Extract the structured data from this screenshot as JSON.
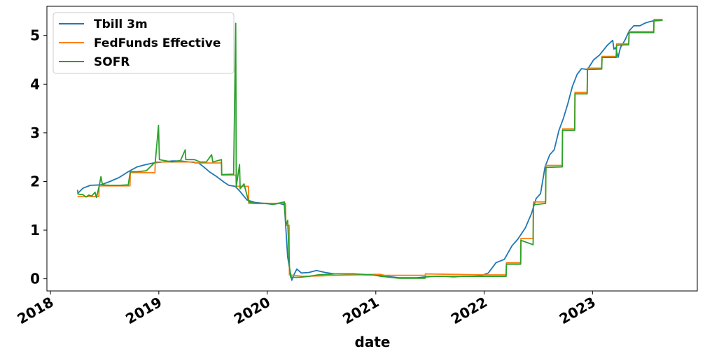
{
  "chart_data": {
    "type": "line",
    "title": "",
    "xlabel": "date",
    "ylabel": "",
    "xlim": [
      "2017-12-20",
      "2023-12-20"
    ],
    "ylim": [
      -0.25,
      5.6
    ],
    "xticks": [
      "2018",
      "2019",
      "2020",
      "2021",
      "2022",
      "2023"
    ],
    "yticks": [
      "0",
      "1",
      "2",
      "3",
      "4",
      "5"
    ],
    "legend_position": "top-left",
    "grid": false,
    "series": [
      {
        "name": "Tbill 3m",
        "color": "#1f77b4",
        "points": [
          [
            "2018-04-02",
            1.75
          ],
          [
            "2018-04-20",
            1.86
          ],
          [
            "2018-05-15",
            1.92
          ],
          [
            "2018-06-20",
            1.93
          ],
          [
            "2018-07-20",
            2.0
          ],
          [
            "2018-08-20",
            2.08
          ],
          [
            "2018-09-20",
            2.2
          ],
          [
            "2018-10-20",
            2.3
          ],
          [
            "2018-11-20",
            2.35
          ],
          [
            "2018-12-15",
            2.38
          ],
          [
            "2019-01-15",
            2.4
          ],
          [
            "2019-02-15",
            2.42
          ],
          [
            "2019-03-15",
            2.42
          ],
          [
            "2019-04-15",
            2.4
          ],
          [
            "2019-05-15",
            2.38
          ],
          [
            "2019-06-01",
            2.3
          ],
          [
            "2019-06-20",
            2.2
          ],
          [
            "2019-07-15",
            2.1
          ],
          [
            "2019-08-10",
            1.98
          ],
          [
            "2019-08-25",
            1.92
          ],
          [
            "2019-09-15",
            1.9
          ],
          [
            "2019-10-01",
            1.8
          ],
          [
            "2019-10-25",
            1.62
          ],
          [
            "2019-11-20",
            1.57
          ],
          [
            "2019-12-20",
            1.55
          ],
          [
            "2020-01-20",
            1.53
          ],
          [
            "2020-02-10",
            1.55
          ],
          [
            "2020-02-28",
            1.52
          ],
          [
            "2020-03-05",
            0.95
          ],
          [
            "2020-03-10",
            0.45
          ],
          [
            "2020-03-17",
            0.2
          ],
          [
            "2020-03-24",
            -0.03
          ],
          [
            "2020-03-31",
            0.08
          ],
          [
            "2020-04-10",
            0.2
          ],
          [
            "2020-04-25",
            0.12
          ],
          [
            "2020-05-20",
            0.13
          ],
          [
            "2020-06-15",
            0.17
          ],
          [
            "2020-07-15",
            0.13
          ],
          [
            "2020-08-15",
            0.1
          ],
          [
            "2020-09-20",
            0.1
          ],
          [
            "2020-10-20",
            0.1
          ],
          [
            "2020-11-20",
            0.08
          ],
          [
            "2020-12-20",
            0.08
          ],
          [
            "2021-01-20",
            0.07
          ],
          [
            "2021-02-20",
            0.04
          ],
          [
            "2021-03-20",
            0.02
          ],
          [
            "2021-04-20",
            0.02
          ],
          [
            "2021-05-20",
            0.02
          ],
          [
            "2021-06-20",
            0.04
          ],
          [
            "2021-07-20",
            0.05
          ],
          [
            "2021-08-20",
            0.05
          ],
          [
            "2021-09-20",
            0.04
          ],
          [
            "2021-10-20",
            0.05
          ],
          [
            "2021-11-20",
            0.05
          ],
          [
            "2021-12-20",
            0.06
          ],
          [
            "2022-01-15",
            0.12
          ],
          [
            "2022-02-10",
            0.33
          ],
          [
            "2022-03-10",
            0.4
          ],
          [
            "2022-04-05",
            0.68
          ],
          [
            "2022-04-25",
            0.82
          ],
          [
            "2022-05-20",
            1.05
          ],
          [
            "2022-06-10",
            1.35
          ],
          [
            "2022-06-25",
            1.65
          ],
          [
            "2022-07-10",
            1.75
          ],
          [
            "2022-07-25",
            2.3
          ],
          [
            "2022-08-10",
            2.55
          ],
          [
            "2022-08-25",
            2.65
          ],
          [
            "2022-09-10",
            3.05
          ],
          [
            "2022-09-25",
            3.3
          ],
          [
            "2022-10-10",
            3.6
          ],
          [
            "2022-10-25",
            3.95
          ],
          [
            "2022-11-10",
            4.2
          ],
          [
            "2022-11-25",
            4.32
          ],
          [
            "2022-12-15",
            4.3
          ],
          [
            "2023-01-05",
            4.5
          ],
          [
            "2023-01-25",
            4.6
          ],
          [
            "2023-02-20",
            4.8
          ],
          [
            "2023-03-10",
            4.9
          ],
          [
            "2023-03-14",
            4.72
          ],
          [
            "2023-03-20",
            4.75
          ],
          [
            "2023-03-28",
            4.55
          ],
          [
            "2023-04-05",
            4.75
          ],
          [
            "2023-04-20",
            4.9
          ],
          [
            "2023-05-05",
            5.1
          ],
          [
            "2023-05-20",
            5.2
          ],
          [
            "2023-06-10",
            5.2
          ],
          [
            "2023-06-25",
            5.25
          ],
          [
            "2023-07-10",
            5.28
          ],
          [
            "2023-07-25",
            5.3
          ],
          [
            "2023-08-10",
            5.32
          ],
          [
            "2023-08-25",
            5.33
          ]
        ]
      },
      {
        "name": "FedFunds Effective",
        "color": "#ff7f0e",
        "points": [
          [
            "2018-04-02",
            1.69
          ],
          [
            "2018-06-13",
            1.69
          ],
          [
            "2018-06-14",
            1.91
          ],
          [
            "2018-09-26",
            1.91
          ],
          [
            "2018-09-27",
            2.18
          ],
          [
            "2018-12-19",
            2.18
          ],
          [
            "2018-12-20",
            2.4
          ],
          [
            "2019-05-01",
            2.4
          ],
          [
            "2019-05-02",
            2.38
          ],
          [
            "2019-07-31",
            2.38
          ],
          [
            "2019-08-01",
            2.13
          ],
          [
            "2019-09-18",
            2.13
          ],
          [
            "2019-09-19",
            1.9
          ],
          [
            "2019-10-30",
            1.9
          ],
          [
            "2019-10-31",
            1.55
          ],
          [
            "2020-03-03",
            1.55
          ],
          [
            "2020-03-04",
            1.1
          ],
          [
            "2020-03-15",
            1.1
          ],
          [
            "2020-03-16",
            0.08
          ],
          [
            "2020-05-01",
            0.05
          ],
          [
            "2020-12-31",
            0.09
          ],
          [
            "2021-01-15",
            0.09
          ],
          [
            "2021-02-01",
            0.07
          ],
          [
            "2021-06-16",
            0.07
          ],
          [
            "2021-06-17",
            0.1
          ],
          [
            "2021-12-31",
            0.08
          ],
          [
            "2022-03-16",
            0.08
          ],
          [
            "2022-03-17",
            0.33
          ],
          [
            "2022-05-04",
            0.33
          ],
          [
            "2022-05-05",
            0.83
          ],
          [
            "2022-06-15",
            0.83
          ],
          [
            "2022-06-16",
            1.58
          ],
          [
            "2022-07-27",
            1.58
          ],
          [
            "2022-07-28",
            2.33
          ],
          [
            "2022-09-21",
            2.33
          ],
          [
            "2022-09-22",
            3.08
          ],
          [
            "2022-11-02",
            3.08
          ],
          [
            "2022-11-03",
            3.83
          ],
          [
            "2022-12-14",
            3.83
          ],
          [
            "2022-12-15",
            4.33
          ],
          [
            "2023-02-01",
            4.33
          ],
          [
            "2023-02-02",
            4.57
          ],
          [
            "2023-03-22",
            4.57
          ],
          [
            "2023-03-23",
            4.83
          ],
          [
            "2023-05-03",
            4.83
          ],
          [
            "2023-05-04",
            5.08
          ],
          [
            "2023-07-26",
            5.08
          ],
          [
            "2023-07-27",
            5.33
          ],
          [
            "2023-08-25",
            5.33
          ]
        ]
      },
      {
        "name": "SOFR",
        "color": "#2ca02c",
        "points": [
          [
            "2018-04-02",
            1.83
          ],
          [
            "2018-04-04",
            1.74
          ],
          [
            "2018-04-20",
            1.73
          ],
          [
            "2018-05-01",
            1.68
          ],
          [
            "2018-05-10",
            1.72
          ],
          [
            "2018-05-20",
            1.7
          ],
          [
            "2018-05-31",
            1.78
          ],
          [
            "2018-06-05",
            1.67
          ],
          [
            "2018-06-14",
            1.9
          ],
          [
            "2018-06-20",
            2.1
          ],
          [
            "2018-06-25",
            1.93
          ],
          [
            "2018-07-20",
            1.92
          ],
          [
            "2018-08-20",
            1.92
          ],
          [
            "2018-09-20",
            1.93
          ],
          [
            "2018-09-27",
            2.2
          ],
          [
            "2018-10-20",
            2.2
          ],
          [
            "2018-11-20",
            2.22
          ],
          [
            "2018-12-20",
            2.4
          ],
          [
            "2018-12-31",
            3.15
          ],
          [
            "2019-01-03",
            2.45
          ],
          [
            "2019-02-15",
            2.4
          ],
          [
            "2019-03-15",
            2.43
          ],
          [
            "2019-03-31",
            2.65
          ],
          [
            "2019-04-02",
            2.45
          ],
          [
            "2019-05-01",
            2.45
          ],
          [
            "2019-05-20",
            2.4
          ],
          [
            "2019-06-10",
            2.4
          ],
          [
            "2019-06-28",
            2.55
          ],
          [
            "2019-07-02",
            2.4
          ],
          [
            "2019-07-31",
            2.45
          ],
          [
            "2019-08-01",
            2.14
          ],
          [
            "2019-09-10",
            2.15
          ],
          [
            "2019-09-17",
            5.25
          ],
          [
            "2019-09-19",
            1.9
          ],
          [
            "2019-09-30",
            2.35
          ],
          [
            "2019-10-02",
            1.85
          ],
          [
            "2019-10-15",
            1.95
          ],
          [
            "2019-10-31",
            1.58
          ],
          [
            "2019-11-20",
            1.55
          ],
          [
            "2019-12-31",
            1.55
          ],
          [
            "2020-01-20",
            1.53
          ],
          [
            "2020-02-28",
            1.58
          ],
          [
            "2020-03-04",
            1.1
          ],
          [
            "2020-03-10",
            1.2
          ],
          [
            "2020-03-16",
            0.25
          ],
          [
            "2020-03-20",
            0.03
          ],
          [
            "2020-04-20",
            0.03
          ],
          [
            "2020-05-20",
            0.05
          ],
          [
            "2020-06-20",
            0.08
          ],
          [
            "2020-08-20",
            0.1
          ],
          [
            "2020-10-20",
            0.1
          ],
          [
            "2020-12-20",
            0.08
          ],
          [
            "2021-01-20",
            0.05
          ],
          [
            "2021-03-20",
            0.01
          ],
          [
            "2021-06-16",
            0.01
          ],
          [
            "2021-06-17",
            0.05
          ],
          [
            "2021-09-20",
            0.05
          ],
          [
            "2021-12-20",
            0.05
          ],
          [
            "2022-03-16",
            0.05
          ],
          [
            "2022-03-17",
            0.3
          ],
          [
            "2022-05-04",
            0.3
          ],
          [
            "2022-05-05",
            0.79
          ],
          [
            "2022-06-15",
            0.7
          ],
          [
            "2022-06-16",
            1.52
          ],
          [
            "2022-07-27",
            1.55
          ],
          [
            "2022-07-28",
            2.29
          ],
          [
            "2022-09-21",
            2.3
          ],
          [
            "2022-09-22",
            3.05
          ],
          [
            "2022-11-02",
            3.05
          ],
          [
            "2022-11-03",
            3.8
          ],
          [
            "2022-12-14",
            3.8
          ],
          [
            "2022-12-15",
            4.3
          ],
          [
            "2023-02-01",
            4.31
          ],
          [
            "2023-02-02",
            4.55
          ],
          [
            "2023-03-22",
            4.55
          ],
          [
            "2023-03-23",
            4.8
          ],
          [
            "2023-05-03",
            4.81
          ],
          [
            "2023-05-04",
            5.06
          ],
          [
            "2023-07-26",
            5.06
          ],
          [
            "2023-07-27",
            5.3
          ],
          [
            "2023-08-25",
            5.31
          ]
        ]
      }
    ]
  }
}
